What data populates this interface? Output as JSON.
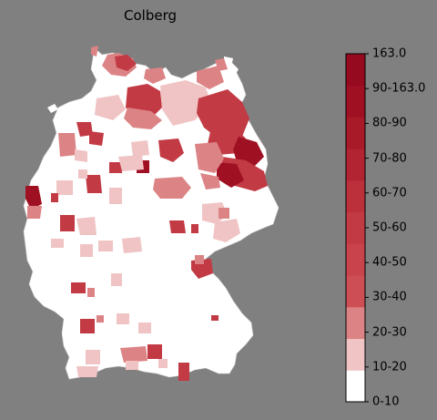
{
  "title": "Colberg",
  "legend": {
    "labels": [
      "163.0",
      "90-163.0",
      "80-90",
      "70-80",
      "60-70",
      "50-60",
      "40-50",
      "30-40",
      "20-30",
      "10-20",
      "0-10"
    ],
    "bin_colors": [
      "#ffffff",
      "#f0c4c4",
      "#dc8385",
      "#cd4f55",
      "#c9434c",
      "#c23a44",
      "#bc303c",
      "#b32432",
      "#a91a29",
      "#9f1023",
      "#960a1f"
    ]
  },
  "map_colors": {
    "background": "#808080",
    "land": "#ffffff",
    "border": "#c8c8c8",
    "light": "#f0c4c4",
    "mid": "#dc8385",
    "strong": "#c23a44",
    "dark": "#9f1023"
  }
}
